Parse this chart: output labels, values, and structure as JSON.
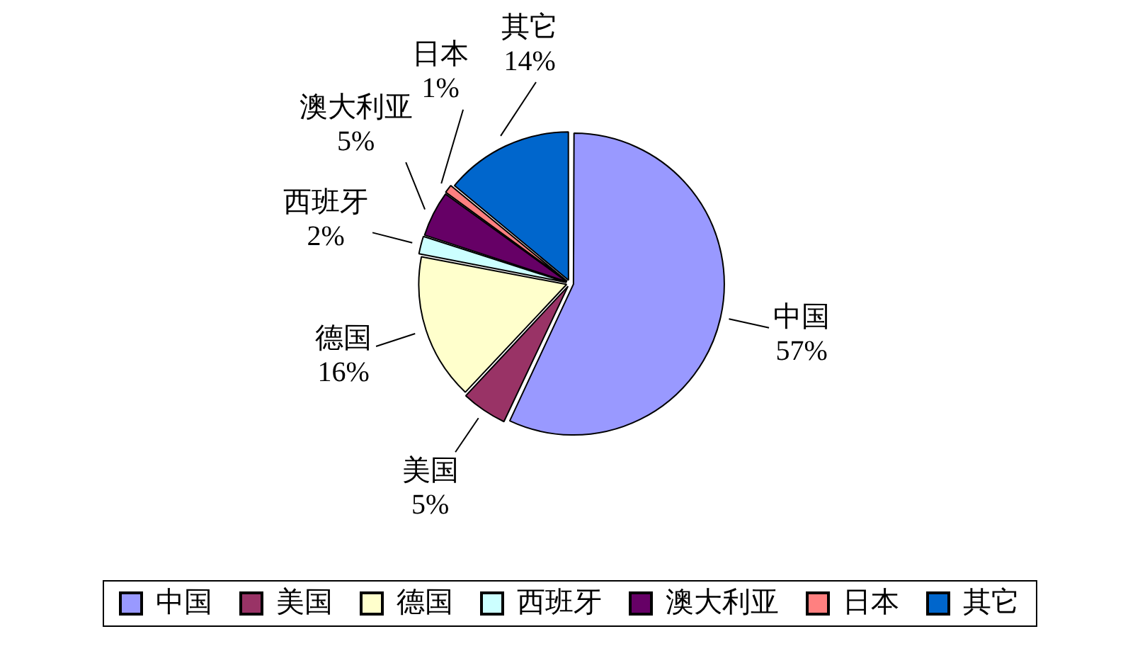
{
  "chart_data": {
    "type": "pie",
    "categories": [
      "中国",
      "美国",
      "德国",
      "西班牙",
      "澳大利亚",
      "日本",
      "其它"
    ],
    "values": [
      57,
      5,
      16,
      2,
      5,
      1,
      14
    ],
    "value_labels": [
      "57%",
      "5%",
      "16%",
      "2%",
      "5%",
      "1%",
      "14%"
    ],
    "colors": [
      "#9999ff",
      "#993366",
      "#ffffcc",
      "#ccffff",
      "#660066",
      "#ff8080",
      "#0066cc"
    ],
    "legend": "bottom"
  }
}
